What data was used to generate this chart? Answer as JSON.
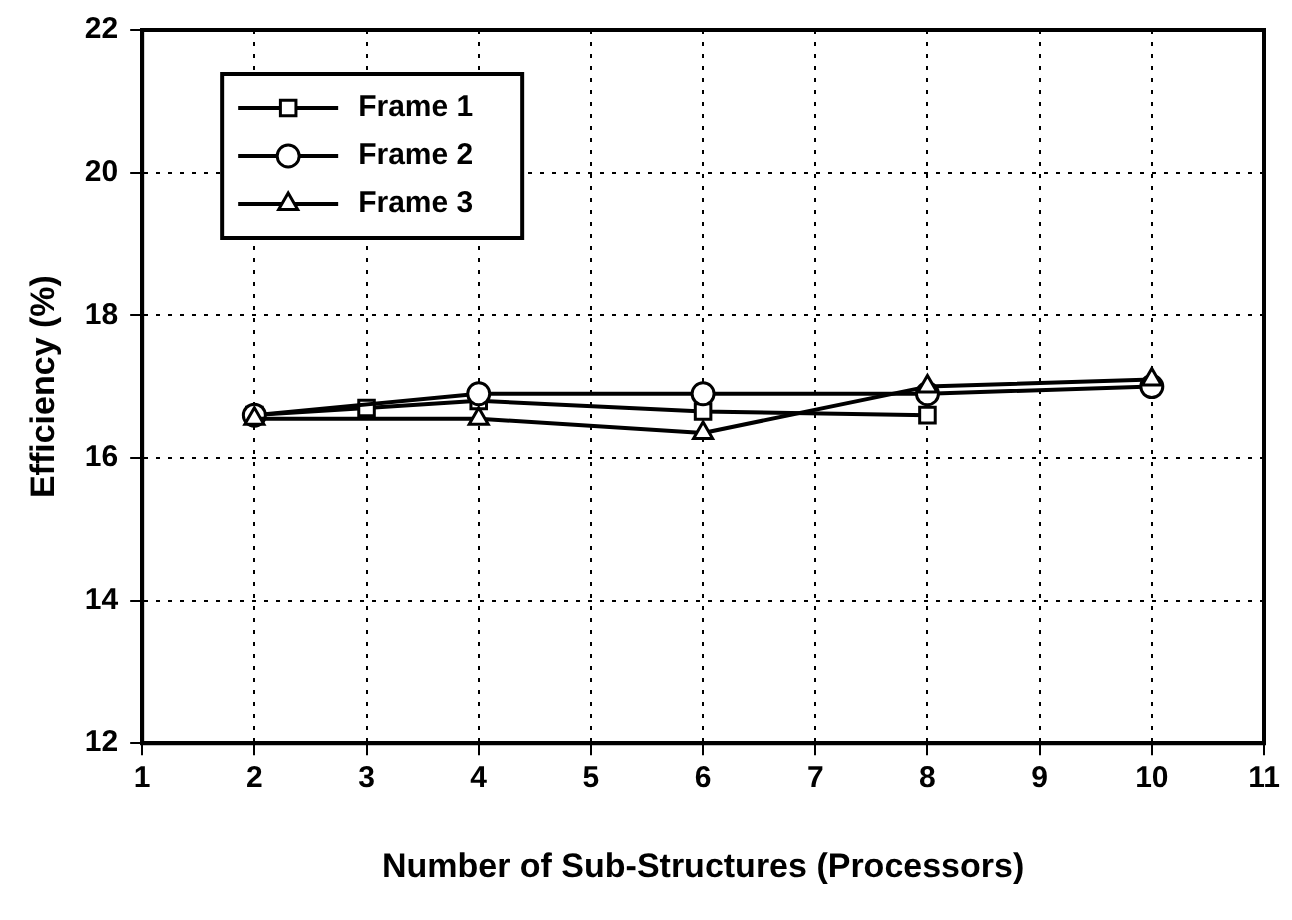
{
  "chart_data": {
    "type": "line",
    "xlabel": "Number of Sub-Structures (Processors)",
    "ylabel": "Efficiency (%)",
    "xlim": [
      1,
      11
    ],
    "xticks": [
      1,
      2,
      3,
      4,
      5,
      6,
      7,
      8,
      9,
      10,
      11
    ],
    "ylim": [
      12,
      22
    ],
    "yticks": [
      12,
      14,
      16,
      18,
      20,
      22
    ],
    "grid": true,
    "legend": "top left",
    "line_style": "solid",
    "series": [
      {
        "name": "Frame 1",
        "color": "#000000",
        "marker": "square",
        "x": [
          2,
          3,
          4,
          6,
          8
        ],
        "values": [
          16.6,
          16.7,
          16.8,
          16.65,
          16.6
        ]
      },
      {
        "name": "Frame 2",
        "color": "#000000",
        "marker": "circle",
        "x": [
          2,
          4,
          6,
          8,
          10
        ],
        "values": [
          16.6,
          16.9,
          16.9,
          16.9,
          17.0
        ]
      },
      {
        "name": "Frame 3",
        "color": "#000000",
        "marker": "triangle",
        "x": [
          2,
          4,
          6,
          8,
          10
        ],
        "values": [
          16.55,
          16.55,
          16.35,
          17.0,
          17.1
        ]
      }
    ]
  }
}
